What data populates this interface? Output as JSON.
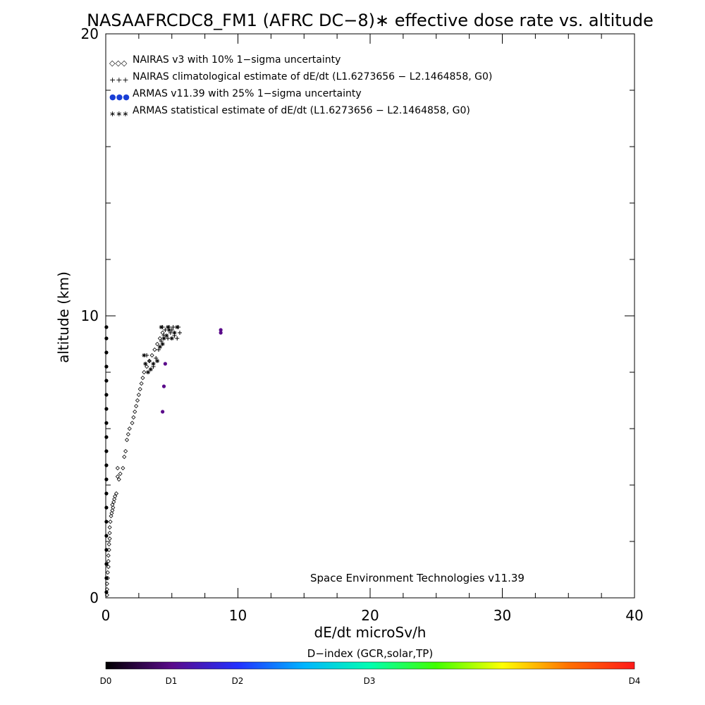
{
  "chart_data": {
    "type": "scatter",
    "title": "NASAAFRCDC8_FM1 (AFRC DC−8)∗ effective dose rate vs. altitude",
    "xlabel": "dE/dt microSv/h",
    "ylabel": "altitude (km)",
    "xlim": [
      0,
      40
    ],
    "ylim": [
      0,
      20
    ],
    "x_ticks": [
      "0",
      "10",
      "20",
      "30",
      "40"
    ],
    "y_ticks": [
      "0",
      "10",
      "20"
    ],
    "legend_position": "top-left",
    "legend": [
      {
        "symbol": "◇◇◇",
        "label": "NAIRAS v3 with 10% 1−sigma uncertainty"
      },
      {
        "symbol": "+++",
        "label": "NAIRAS climatological estimate of dE/dt (L1.6273656 − L2.1464858, G0)"
      },
      {
        "symbol": "●●●",
        "label": "ARMAS v11.39 with 25% 1−sigma uncertainty",
        "color": "#1a3fd6"
      },
      {
        "symbol": "∗∗∗",
        "label": "ARMAS statistical estimate of dE/dt (L1.6273656 − L2.1464858, G0)"
      }
    ],
    "credit": "Space Environment Technologies v11.39",
    "series": [
      {
        "marker": "diamond",
        "x": [
          0.1,
          0.1,
          0.1,
          0.15,
          0.15,
          0.2,
          0.2,
          0.2,
          0.25,
          0.25,
          0.3,
          0.3,
          0.3,
          0.35,
          0.4,
          0.45,
          0.5,
          0.5,
          0.55,
          0.6,
          0.65,
          0.7,
          0.8,
          0.9,
          0.9,
          1.0,
          1.1,
          1.3,
          1.4,
          1.5,
          1.6,
          1.7,
          1.8,
          2.0,
          2.1,
          2.2,
          2.3,
          2.4,
          2.5,
          2.6,
          2.7,
          2.8,
          2.9,
          3.1,
          3.3,
          3.5,
          3.7,
          3.9,
          4.1,
          4.3
        ],
        "y": [
          0.1,
          0.3,
          0.5,
          0.7,
          0.9,
          1.1,
          1.3,
          1.5,
          1.7,
          1.9,
          2.1,
          2.3,
          2.5,
          2.7,
          2.9,
          3.0,
          3.1,
          3.3,
          3.2,
          3.4,
          3.5,
          3.6,
          3.7,
          4.3,
          4.6,
          4.2,
          4.4,
          4.6,
          5.0,
          5.2,
          5.6,
          5.8,
          6.0,
          6.2,
          6.4,
          6.6,
          6.8,
          7.0,
          7.2,
          7.4,
          7.6,
          7.8,
          8.0,
          8.2,
          8.4,
          8.6,
          8.8,
          9.0,
          9.2,
          9.4
        ]
      },
      {
        "marker": "plus",
        "x": [
          3.1,
          3.3,
          3.6,
          3.8,
          4.0,
          4.2,
          4.4,
          4.5,
          4.7,
          4.9,
          5.0,
          5.2,
          5.4,
          5.6,
          4.3,
          4.8,
          5.1,
          5.5
        ],
        "y": [
          8.6,
          8.4,
          8.2,
          8.5,
          8.8,
          9.1,
          9.3,
          9.5,
          9.2,
          9.4,
          9.5,
          9.3,
          9.2,
          9.4,
          9.6,
          9.6,
          9.6,
          9.6
        ]
      },
      {
        "marker": "circle",
        "color_by": "D-index",
        "x": [
          0.05,
          0.05,
          0.05,
          0.05,
          0.05,
          0.05,
          0.05,
          0.05,
          0.05,
          0.05,
          0.05,
          0.05,
          0.05,
          0.05,
          0.05,
          0.05,
          0.05,
          0.05,
          0.05,
          0.05,
          4.3,
          4.4,
          4.5,
          8.7,
          8.7
        ],
        "y": [
          0.2,
          0.7,
          1.2,
          1.7,
          2.2,
          2.7,
          3.2,
          3.7,
          4.2,
          4.7,
          5.2,
          5.7,
          6.2,
          6.7,
          7.2,
          7.7,
          8.2,
          8.7,
          9.2,
          9.6,
          6.6,
          7.5,
          8.3,
          9.5,
          9.4
        ],
        "d_index": [
          0.1,
          0.1,
          0.1,
          0.1,
          0.1,
          0.1,
          0.1,
          0.1,
          0.1,
          0.1,
          0.1,
          0.1,
          0.1,
          0.1,
          0.1,
          0.1,
          0.1,
          0.1,
          0.1,
          0.1,
          0.8,
          0.8,
          0.8,
          0.8,
          0.8
        ]
      },
      {
        "marker": "asterisk",
        "x": [
          2.9,
          3.0,
          3.2,
          3.4,
          3.6,
          3.9,
          4.1,
          4.3,
          4.4,
          4.6,
          4.8,
          5.0,
          5.2,
          5.4,
          4.2,
          4.7
        ],
        "y": [
          8.6,
          8.3,
          8.0,
          8.1,
          8.3,
          8.4,
          8.9,
          9.0,
          9.2,
          9.3,
          9.5,
          9.2,
          9.4,
          9.6,
          9.6,
          9.6
        ]
      }
    ],
    "colorbar": {
      "title": "D−index (GCR,solar,TP)",
      "labels": [
        {
          "text": "D0",
          "value": 0
        },
        {
          "text": "D1",
          "value": 1
        },
        {
          "text": "D2",
          "value": 2
        },
        {
          "text": "D3",
          "value": 3
        },
        {
          "text": "D4",
          "value": 4
        }
      ],
      "stops": [
        "#000000",
        "#5a0a8a",
        "#2230ff",
        "#00b4ff",
        "#00ffb0",
        "#40ff00",
        "#ffff00",
        "#ff7000",
        "#ff1a1a"
      ]
    }
  }
}
